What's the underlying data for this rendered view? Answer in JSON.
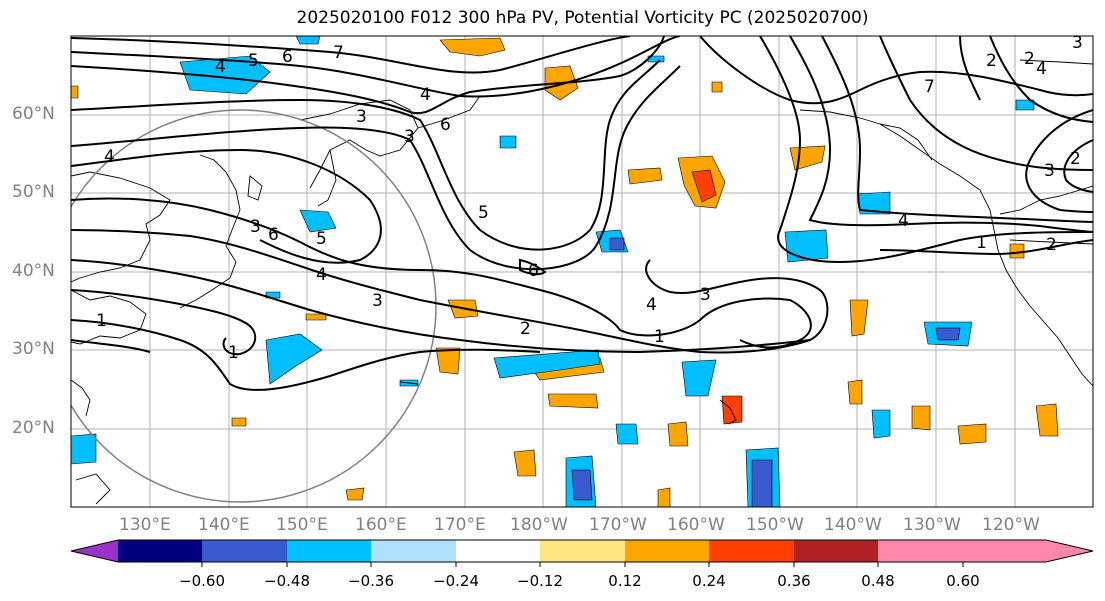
{
  "title": "2025020100 F012 300 hPa PV, Potential Vorticity PC (2025020700)",
  "lat_labels": [
    "60°N",
    "50°N",
    "40°N",
    "30°N",
    "20°N"
  ],
  "lon_labels": [
    "130°E",
    "140°E",
    "150°E",
    "160°E",
    "170°E",
    "180°W",
    "170°W",
    "160°W",
    "150°W",
    "140°W",
    "130°W",
    "120°W"
  ],
  "colorbar": {
    "ticks": [
      "−0.60",
      "−0.48",
      "−0.36",
      "−0.24",
      "−0.12",
      "0.12",
      "0.24",
      "0.36",
      "0.48",
      "0.60"
    ],
    "colors": [
      "#9933cc",
      "#000080",
      "#3a5bd0",
      "#00bfff",
      "#b0e0ff",
      "#ffffff",
      "#ffe680",
      "#ffa500",
      "#ff4000",
      "#b22222",
      "#ff88aa"
    ]
  },
  "contour_labels": [
    "4",
    "5",
    "6",
    "7",
    "3",
    "4",
    "6",
    "3",
    "4",
    "5",
    "3",
    "6",
    "5",
    "4",
    "3",
    "1",
    "4",
    "3",
    "2",
    "1",
    "6",
    "7",
    "2",
    "3",
    "4",
    "1",
    "2",
    "4",
    "3",
    "2",
    "1",
    "2"
  ]
}
